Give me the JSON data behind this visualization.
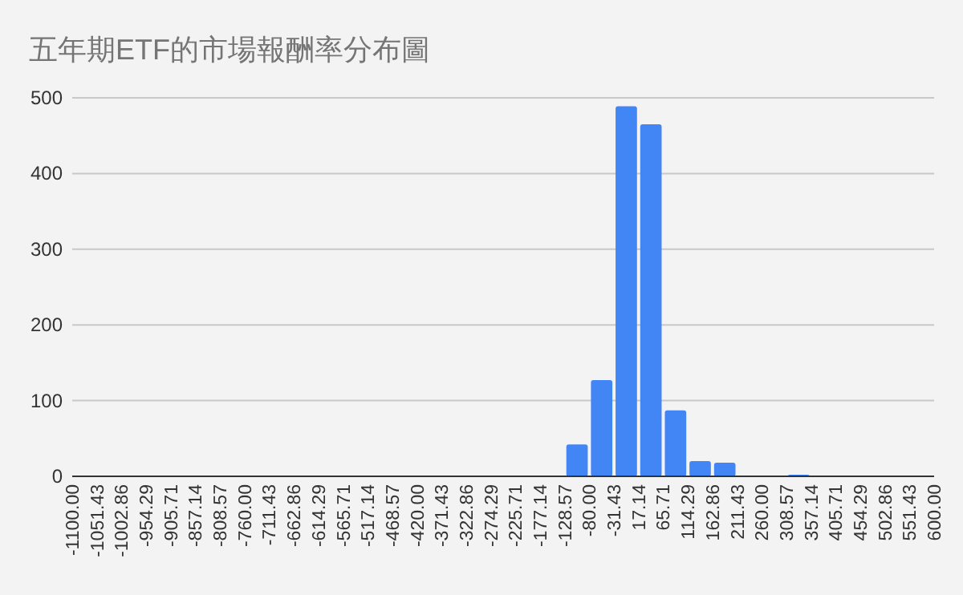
{
  "chart_data": {
    "type": "histogram",
    "title": "五年期ETF的市場報酬率分布圖",
    "bins": [
      -1100.0,
      -1051.43,
      -1002.86,
      -954.29,
      -905.71,
      -857.14,
      -808.57,
      -760.0,
      -711.43,
      -662.86,
      -614.29,
      -565.71,
      -517.14,
      -468.57,
      -420.0,
      -371.43,
      -322.86,
      -274.29,
      -225.71,
      -177.14,
      -128.57,
      -80.0,
      -31.43,
      17.14,
      65.71,
      114.29,
      162.86,
      211.43,
      260.0,
      308.57,
      357.14,
      405.71,
      454.29,
      502.86,
      551.43,
      600.0
    ],
    "values": [
      0,
      0,
      0,
      0,
      0,
      0,
      0,
      0,
      0,
      0,
      0,
      0,
      0,
      0,
      0,
      0,
      0,
      0,
      0,
      0,
      42,
      127,
      489,
      465,
      87,
      20,
      18,
      0,
      0,
      2,
      0,
      0,
      0,
      0,
      0
    ],
    "color": "#4285f4",
    "xlim": [
      -1100,
      600
    ],
    "xticks": [
      {
        "value": -1100,
        "label": "-1100.00"
      },
      {
        "value": -1051.43,
        "label": "-1051.43"
      },
      {
        "value": -1002.86,
        "label": "-1002.86"
      },
      {
        "value": -954.29,
        "label": "-954.29"
      },
      {
        "value": -905.71,
        "label": "-905.71"
      },
      {
        "value": -857.14,
        "label": "-857.14"
      },
      {
        "value": -808.57,
        "label": "-808.57"
      },
      {
        "value": -760,
        "label": "-760.00"
      },
      {
        "value": -711.43,
        "label": "-711.43"
      },
      {
        "value": -662.86,
        "label": "-662.86"
      },
      {
        "value": -614.29,
        "label": "-614.29"
      },
      {
        "value": -565.71,
        "label": "-565.71"
      },
      {
        "value": -517.14,
        "label": "-517.14"
      },
      {
        "value": -468.57,
        "label": "-468.57"
      },
      {
        "value": -420,
        "label": "-420.00"
      },
      {
        "value": -371.43,
        "label": "-371.43"
      },
      {
        "value": -322.86,
        "label": "-322.86"
      },
      {
        "value": -274.29,
        "label": "-274.29"
      },
      {
        "value": -225.71,
        "label": "-225.71"
      },
      {
        "value": -177.14,
        "label": "-177.14"
      },
      {
        "value": -128.57,
        "label": "-128.57"
      },
      {
        "value": -80,
        "label": "-80.00"
      },
      {
        "value": -31.43,
        "label": "-31.43"
      },
      {
        "value": 17.14,
        "label": "17.14"
      },
      {
        "value": 65.71,
        "label": "65.71"
      },
      {
        "value": 114.29,
        "label": "114.29"
      },
      {
        "value": 162.86,
        "label": "162.86"
      },
      {
        "value": 211.43,
        "label": "211.43"
      },
      {
        "value": 260,
        "label": "260.00"
      },
      {
        "value": 308.57,
        "label": "308.57"
      },
      {
        "value": 357.14,
        "label": "357.14"
      },
      {
        "value": 405.71,
        "label": "405.71"
      },
      {
        "value": 454.29,
        "label": "454.29"
      },
      {
        "value": 502.86,
        "label": "502.86"
      },
      {
        "value": 551.43,
        "label": "551.43"
      },
      {
        "value": 600,
        "label": "600.00"
      }
    ],
    "ylim": [
      0,
      500
    ],
    "yticks": [
      0,
      100,
      200,
      300,
      400,
      500
    ],
    "grid": "y"
  }
}
